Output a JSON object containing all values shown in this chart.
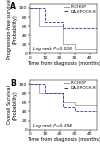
{
  "panel_A": {
    "label": "A",
    "ylabel": "Progression-free survival\n(Probability)",
    "xlabel": "Time from diagnosis (months)",
    "log_rank": "Log rank P=0.028",
    "xlim": [
      0,
      45
    ],
    "ylim": [
      0,
      108
    ],
    "yticks": [
      0,
      20,
      40,
      60,
      80,
      100
    ],
    "xticks": [
      0,
      10,
      20,
      30,
      40
    ],
    "series": [
      {
        "label": "R-CHOP",
        "color": "#999999",
        "style": "-",
        "x": [
          0,
          6,
          6,
          22,
          22,
          30,
          30,
          45
        ],
        "y": [
          100,
          100,
          60,
          60,
          20,
          20,
          10,
          10
        ]
      },
      {
        "label": "DA-EPOCH-R",
        "color": "#2222aa",
        "style": "--",
        "x": [
          0,
          10,
          10,
          22,
          22,
          45
        ],
        "y": [
          100,
          100,
          70,
          70,
          55,
          55
        ]
      }
    ]
  },
  "panel_B": {
    "label": "B",
    "ylabel": "Overall Survival\n(Probability)",
    "xlabel": "Time from diagnosis (months)",
    "log_rank": "Log rank P=0.394",
    "xlim": [
      0,
      45
    ],
    "ylim": [
      0,
      108
    ],
    "yticks": [
      0,
      20,
      40,
      60,
      80,
      100
    ],
    "xticks": [
      0,
      10,
      20,
      30,
      40
    ],
    "series": [
      {
        "label": "R-CHOP",
        "color": "#999999",
        "style": "-",
        "x": [
          0,
          6,
          6,
          22,
          22,
          30,
          30,
          45
        ],
        "y": [
          100,
          100,
          80,
          80,
          60,
          60,
          55,
          55
        ]
      },
      {
        "label": "DA-EPOCH-R",
        "color": "#2222aa",
        "style": "--",
        "x": [
          0,
          10,
          10,
          22,
          22,
          30,
          30,
          45
        ],
        "y": [
          100,
          100,
          80,
          80,
          50,
          50,
          40,
          40
        ]
      }
    ]
  },
  "background_color": "#ffffff",
  "tick_fontsize": 3.2,
  "label_fontsize": 3.5,
  "legend_fontsize": 3.0,
  "logrank_fontsize": 3.2,
  "panel_label_fontsize": 5.5
}
